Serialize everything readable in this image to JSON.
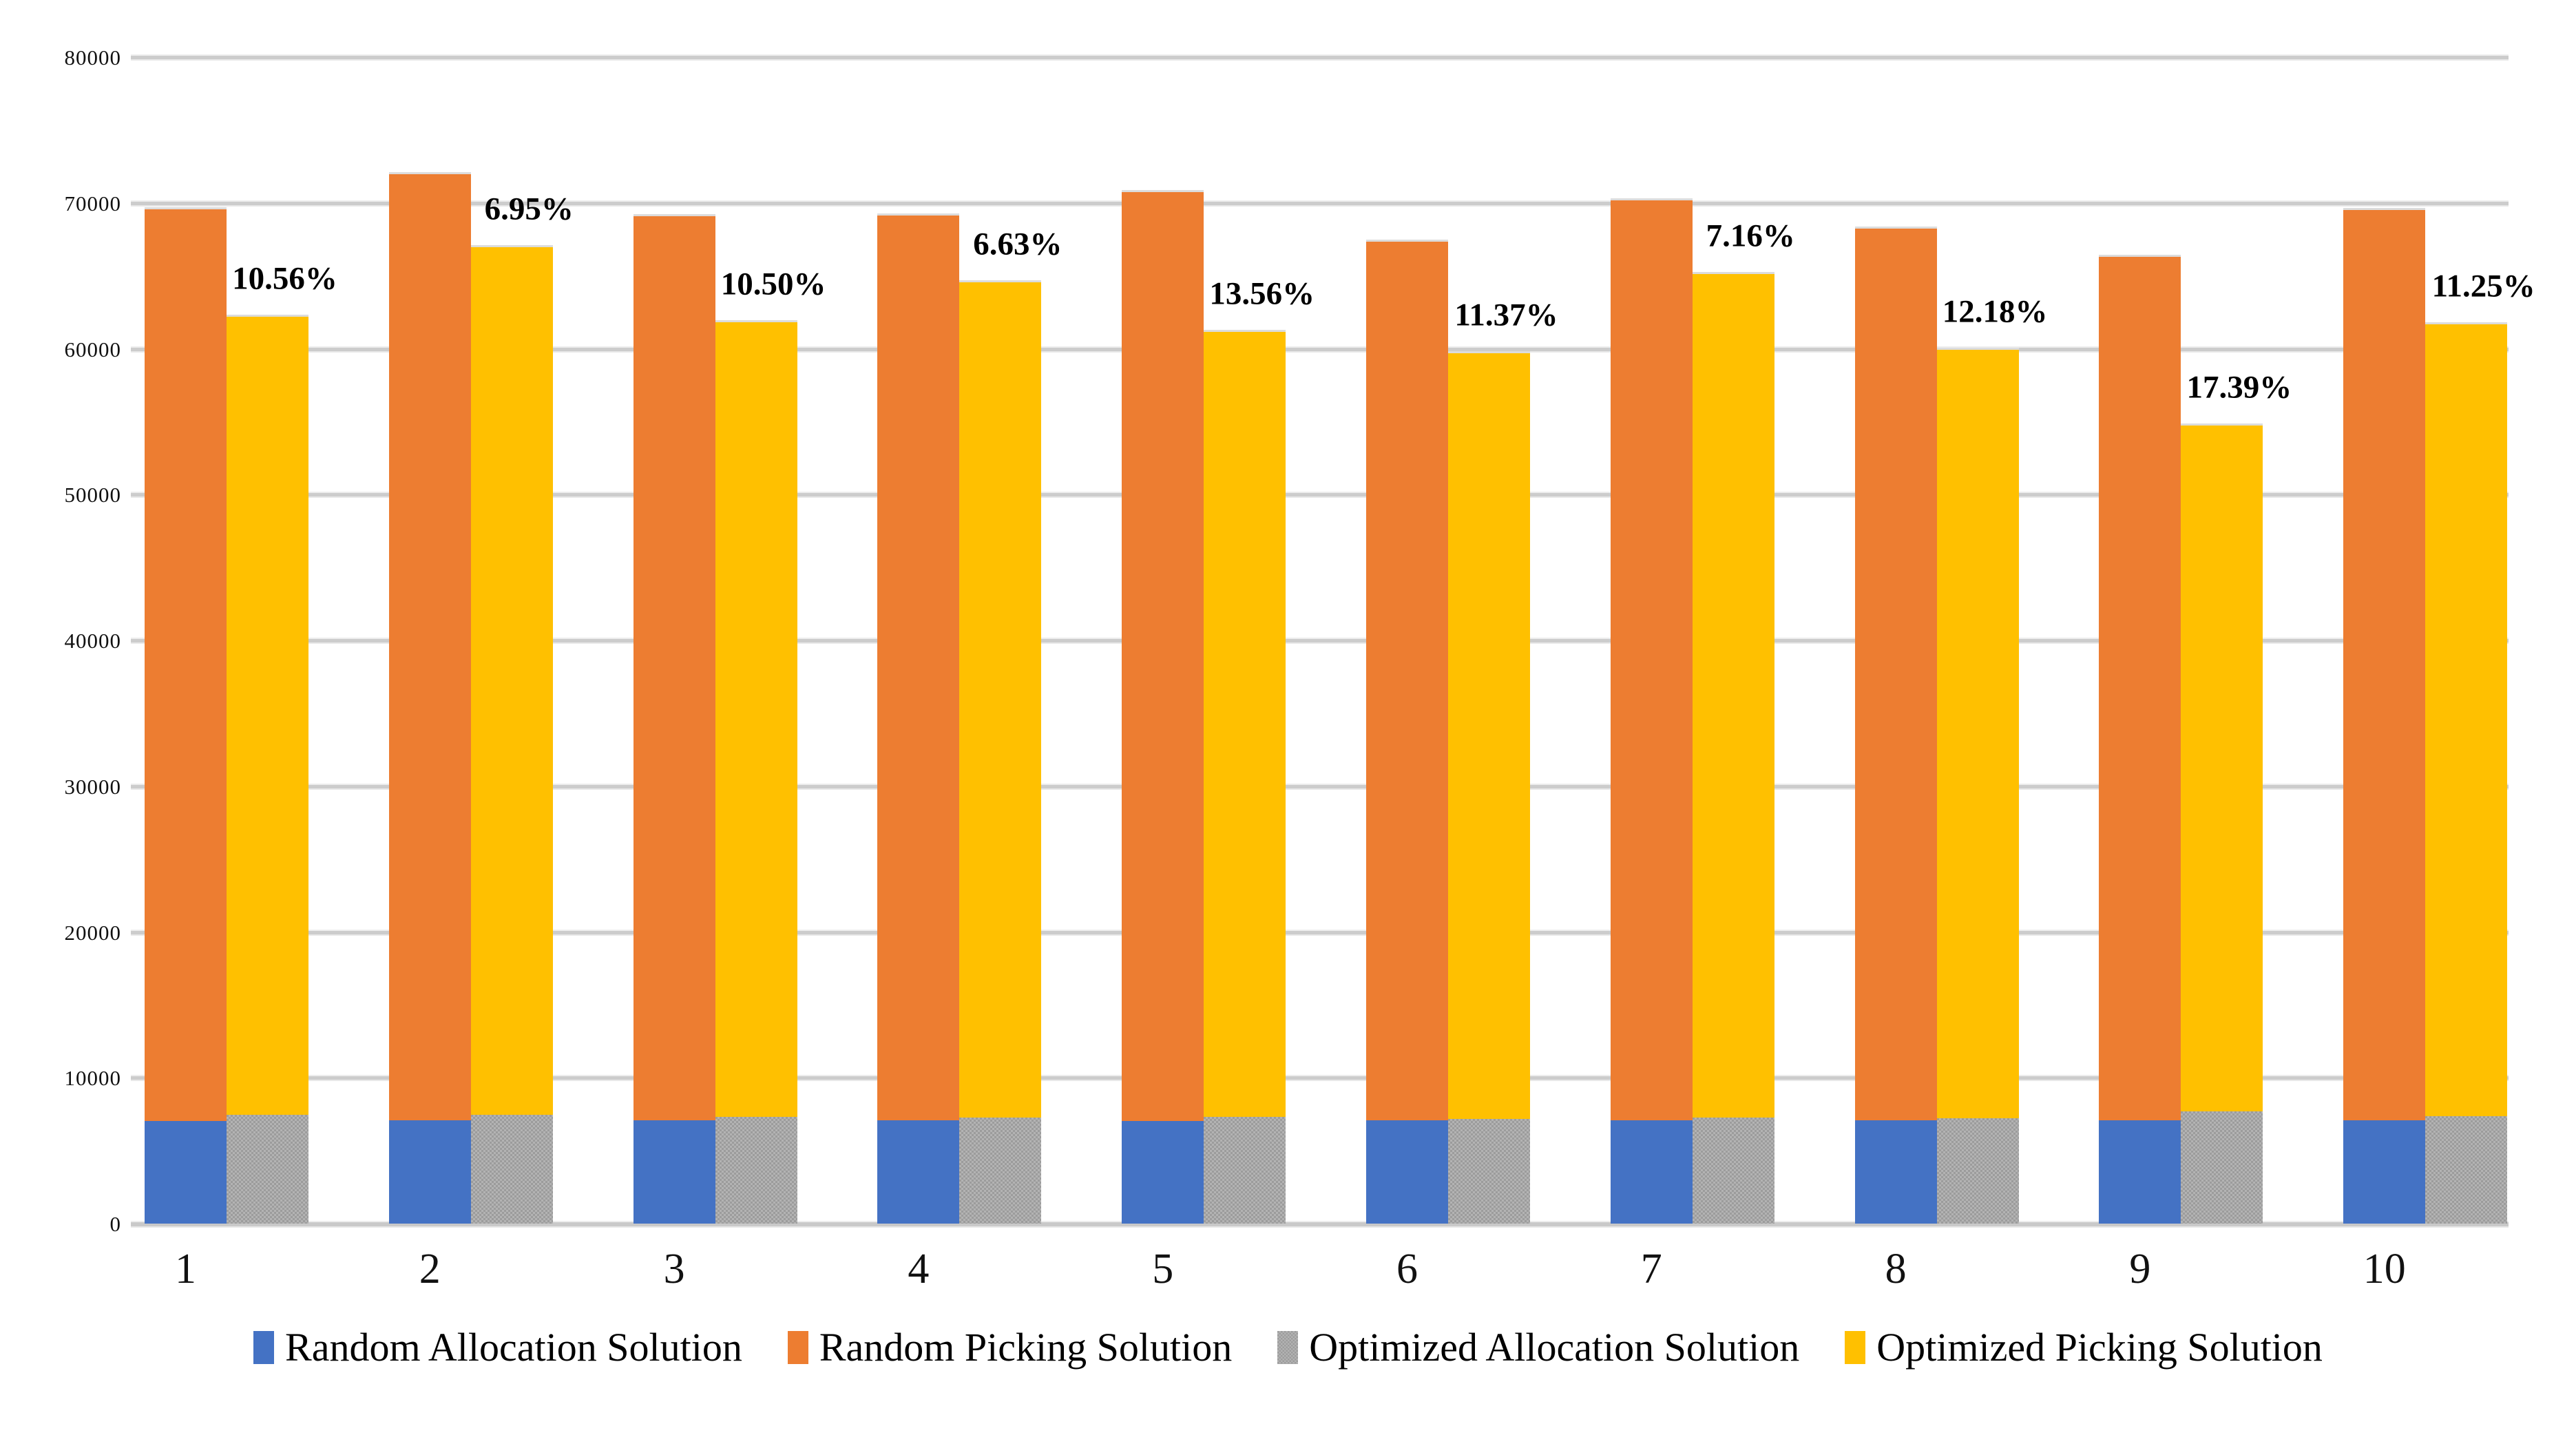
{
  "page": {
    "background": "#ffffff"
  },
  "colors": {
    "gridline": "#cccccc",
    "axis_line": "#c9c9c9",
    "tick_text": "#111111",
    "percent_label_text": "#000000",
    "series_blue": "#4472C4",
    "series_orange": "#ED7D31",
    "series_gray": "#A5A5A5",
    "series_yellow": "#FFC000"
  },
  "chart_data": {
    "type": "bar",
    "subtype": "paired-stacked-columns",
    "title": "",
    "xlabel": "",
    "ylabel": "",
    "grid": true,
    "legend_position": "bottom",
    "categories": [
      "1",
      "2",
      "3",
      "4",
      "5",
      "6",
      "7",
      "8",
      "9",
      "10"
    ],
    "y_axis": {
      "min": 0,
      "max": 80000,
      "tick_step": 10000,
      "tick_labels": [
        "0",
        "10000",
        "20000",
        "30000",
        "40000",
        "50000",
        "60000",
        "70000",
        "80000"
      ]
    },
    "stacks": [
      {
        "id": "random",
        "base_series": "Random Allocation Solution",
        "top_series": "Random Picking Solution"
      },
      {
        "id": "optimized",
        "base_series": "Optimized Allocation Solution",
        "top_series": "Optimized Picking Solution"
      }
    ],
    "series": [
      {
        "name": "Random Allocation Solution",
        "color": "#4472C4",
        "pattern": "solid",
        "role": "stack-random-base",
        "values": [
          7050,
          7100,
          7100,
          7085,
          7055,
          7080,
          7080,
          7080,
          7080,
          7100
        ]
      },
      {
        "name": "Random Picking Solution",
        "color": "#ED7D31",
        "pattern": "solid",
        "role": "stack-random-top",
        "stack_top_values": [
          69700,
          72100,
          69250,
          69280,
          70900,
          67500,
          70300,
          68400,
          66450,
          69670
        ]
      },
      {
        "name": "Optimized Allocation Solution",
        "color": "#A5A5A5",
        "pattern": "checker",
        "role": "stack-optimized-base",
        "values": [
          7450,
          7450,
          7320,
          7260,
          7320,
          7175,
          7255,
          7210,
          7710,
          7365
        ]
      },
      {
        "name": "Optimized Picking Solution",
        "color": "#FFC000",
        "pattern": "solid",
        "role": "stack-optimized-top",
        "stack_top_values": [
          62340,
          67090,
          61980,
          64690,
          61290,
          59825,
          65270,
          60070,
          54895,
          61830
        ]
      }
    ],
    "percent_labels": {
      "description": "improvement of optimized picking vs random picking, shown beside each optimized stack",
      "values": [
        "10.56%",
        "6.95%",
        "10.50%",
        "6.63%",
        "13.56%",
        "11.37%",
        "7.16%",
        "12.18%",
        "17.39%",
        "11.25%"
      ]
    }
  },
  "legend": {
    "items": [
      {
        "label": "Random Allocation Solution",
        "color": "#4472C4",
        "pattern": "solid"
      },
      {
        "label": "Random Picking Solution",
        "color": "#ED7D31",
        "pattern": "solid"
      },
      {
        "label": "Optimized Allocation Solution",
        "color": "#A5A5A5",
        "pattern": "checker"
      },
      {
        "label": "Optimized Picking Solution",
        "color": "#FFC000",
        "pattern": "solid"
      }
    ]
  }
}
